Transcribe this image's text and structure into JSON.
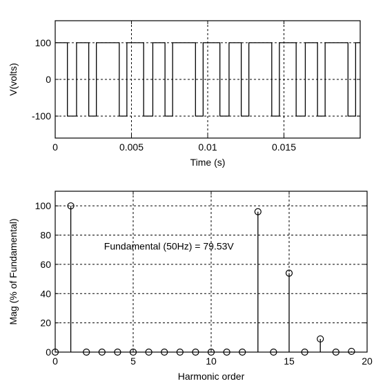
{
  "chart_data": [
    {
      "type": "line",
      "xlabel": "Time (s)",
      "ylabel": "V(volts)",
      "xlim": [
        0,
        0.02
      ],
      "ylim": [
        -160,
        160
      ],
      "grid": true,
      "xticks": [
        0,
        0.005,
        0.01,
        0.015
      ],
      "xtick_labels": [
        "0",
        "0.005",
        "0.01",
        "0.015"
      ],
      "yticks": [
        -100,
        0,
        100
      ],
      "ytick_labels": [
        "-100",
        "0",
        "100"
      ],
      "series": [
        {
          "color": "#000000",
          "x": [
            0,
            0.0008,
            0.0008,
            0.0014,
            0.0014,
            0.0022,
            0.0022,
            0.0027,
            0.0027,
            0.0042,
            0.0042,
            0.0047,
            0.0047,
            0.0058,
            0.0058,
            0.0064,
            0.0064,
            0.0072,
            0.0072,
            0.0077,
            0.0077,
            0.0092,
            0.0092,
            0.0097,
            0.0097,
            0.0108,
            0.0108,
            0.0114,
            0.0114,
            0.0122,
            0.0122,
            0.0127,
            0.0127,
            0.0142,
            0.0142,
            0.0147,
            0.0147,
            0.0158,
            0.0158,
            0.0164,
            0.0164,
            0.0172,
            0.0172,
            0.0177,
            0.0177,
            0.0192,
            0.0192,
            0.0197,
            0.0197,
            0.02
          ],
          "y": [
            100,
            100,
            -100,
            -100,
            100,
            100,
            -100,
            -100,
            100,
            100,
            -100,
            -100,
            100,
            100,
            -100,
            -100,
            100,
            100,
            -100,
            -100,
            100,
            100,
            -100,
            -100,
            100,
            100,
            -100,
            -100,
            100,
            100,
            -100,
            -100,
            100,
            100,
            -100,
            -100,
            100,
            100,
            -100,
            -100,
            100,
            100,
            -100,
            -100,
            100,
            100,
            -100,
            -100,
            100,
            100
          ]
        }
      ]
    },
    {
      "type": "stem",
      "xlabel": "Harmonic order",
      "ylabel": "Mag (% of Fundamental)",
      "xlim": [
        0,
        20
      ],
      "ylim": [
        0,
        110
      ],
      "grid": true,
      "xticks": [
        0,
        5,
        10,
        15,
        20
      ],
      "xtick_labels": [
        "0",
        "5",
        "10",
        "15",
        "20"
      ],
      "yticks": [
        0,
        20,
        40,
        60,
        80,
        100
      ],
      "ytick_labels": [
        "0",
        "20",
        "40",
        "60",
        "80",
        "100"
      ],
      "annotation": "Fundamental (50Hz) = 79.53V",
      "annotation_at": [
        3,
        70
      ],
      "series": [
        {
          "color": "#000000",
          "x": [
            0,
            1,
            2,
            3,
            4,
            5,
            6,
            7,
            8,
            9,
            10,
            11,
            12,
            13,
            14,
            15,
            16,
            17,
            18,
            19
          ],
          "y": [
            0,
            100,
            0,
            0,
            0,
            0,
            0,
            0,
            0,
            0,
            0,
            0,
            0,
            96,
            0,
            54,
            0,
            9,
            0,
            0.5
          ]
        }
      ]
    }
  ]
}
